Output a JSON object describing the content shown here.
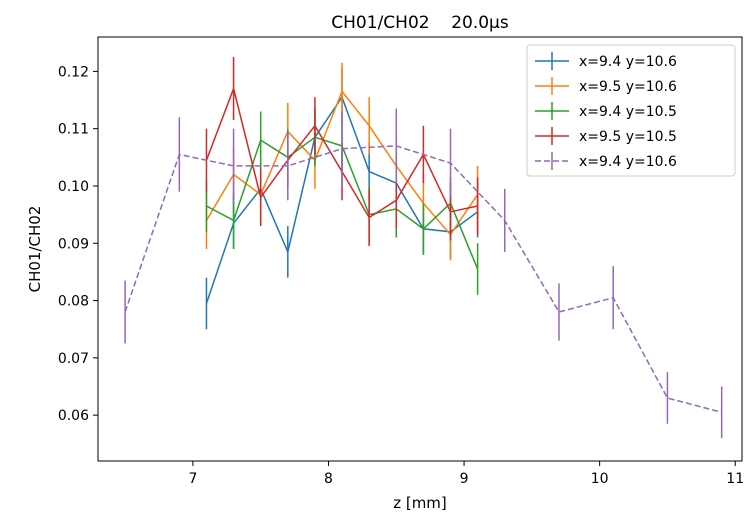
{
  "chart_data": {
    "type": "line",
    "title": "CH01/CH02    20.0μs",
    "xlabel": "z [mm]",
    "ylabel": "CH01/CH02",
    "xlim": [
      6.3,
      11.05
    ],
    "ylim": [
      0.052,
      0.126
    ],
    "xticks": [
      7,
      8,
      9,
      10,
      11
    ],
    "yticks": [
      0.06,
      0.07,
      0.08,
      0.09,
      0.1,
      0.11,
      0.12
    ],
    "ytick_labels": [
      "0.06",
      "0.07",
      "0.08",
      "0.09",
      "0.10",
      "0.11",
      "0.12"
    ],
    "grid": false,
    "legend_position": "top-right",
    "series": [
      {
        "name": "x=9.4 y=10.6",
        "color": "#1f77b4",
        "dashed": false,
        "x": [
          7.1,
          7.3,
          7.5,
          7.7,
          7.9,
          8.1,
          8.3,
          8.5,
          8.7,
          8.9,
          9.1
        ],
        "y": [
          0.0795,
          0.0935,
          0.0995,
          0.0885,
          0.1085,
          0.1155,
          0.1025,
          0.1005,
          0.0925,
          0.092,
          0.0955
        ],
        "yerr": [
          0.0045,
          0.0045,
          0.0045,
          0.0045,
          0.005,
          0.005,
          0.005,
          0.005,
          0.0045,
          0.0045,
          0.0045
        ]
      },
      {
        "name": "x=9.5 y=10.6",
        "color": "#ff7f0e",
        "dashed": false,
        "x": [
          7.1,
          7.3,
          7.5,
          7.7,
          7.9,
          8.1,
          8.3,
          8.5,
          8.7,
          8.9,
          9.1
        ],
        "y": [
          0.094,
          0.102,
          0.0985,
          0.1095,
          0.1045,
          0.1165,
          0.1105,
          0.1035,
          0.097,
          0.0915,
          0.0985
        ],
        "yerr": [
          0.005,
          0.005,
          0.005,
          0.005,
          0.005,
          0.005,
          0.005,
          0.005,
          0.005,
          0.0045,
          0.005
        ]
      },
      {
        "name": "x=9.4 y=10.5",
        "color": "#2ca02c",
        "dashed": false,
        "x": [
          7.1,
          7.3,
          7.5,
          7.7,
          7.9,
          8.1,
          8.3,
          8.5,
          8.7,
          8.9,
          9.1
        ],
        "y": [
          0.0965,
          0.094,
          0.108,
          0.105,
          0.1085,
          0.107,
          0.095,
          0.096,
          0.0925,
          0.097,
          0.0855
        ],
        "yerr": [
          0.0045,
          0.005,
          0.005,
          0.005,
          0.005,
          0.005,
          0.005,
          0.005,
          0.0045,
          0.0045,
          0.0045
        ]
      },
      {
        "name": "x=9.5 y=10.5",
        "color": "#d62728",
        "dashed": false,
        "x": [
          7.1,
          7.3,
          7.5,
          7.7,
          7.9,
          8.1,
          8.3,
          8.5,
          8.7,
          8.9,
          9.1
        ],
        "y": [
          0.1045,
          0.117,
          0.098,
          0.1045,
          0.1105,
          0.1025,
          0.0945,
          0.0975,
          0.1055,
          0.0955,
          0.0965
        ],
        "yerr": [
          0.0055,
          0.0055,
          0.005,
          0.005,
          0.005,
          0.005,
          0.005,
          0.005,
          0.005,
          0.005,
          0.005
        ]
      },
      {
        "name": "x=9.4 y=10.6",
        "color": "#9467bd",
        "dashed": true,
        "x": [
          6.5,
          6.9,
          7.3,
          7.7,
          8.1,
          8.5,
          8.9,
          9.3,
          9.7,
          10.1,
          10.5,
          10.9
        ],
        "y": [
          0.078,
          0.1055,
          0.1035,
          0.1035,
          0.1065,
          0.107,
          0.104,
          0.094,
          0.078,
          0.0805,
          0.063,
          0.0605
        ],
        "yerr": [
          0.0055,
          0.0065,
          0.0065,
          0.006,
          0.0065,
          0.0065,
          0.006,
          0.0055,
          0.005,
          0.0055,
          0.0045,
          0.0045
        ]
      }
    ]
  }
}
